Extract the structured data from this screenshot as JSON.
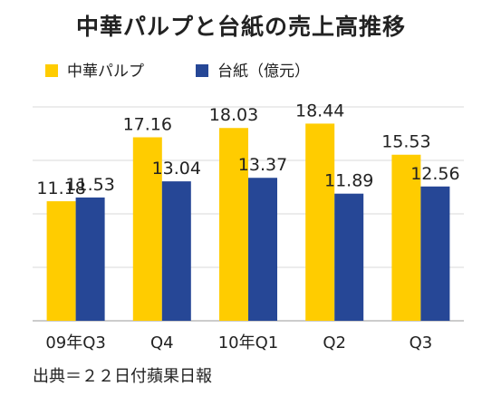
{
  "title": "中華パルプと台紙の売上高推移",
  "source": "出典＝２２日付蘋果日報",
  "colors": {
    "pulp": "#FFCC00",
    "paper": "#264796",
    "grid": "#d9d9d9",
    "axis": "#999999"
  },
  "chart_data": {
    "type": "bar",
    "title": "中華パルプと台紙の売上高推移",
    "unit": "億元",
    "categories": [
      "09年Q3",
      "Q4",
      "10年Q1",
      "Q2",
      "Q3"
    ],
    "series": [
      {
        "name": "中華パルプ",
        "values": [
          11.18,
          17.16,
          18.03,
          18.44,
          15.53
        ],
        "value_labels": [
          "11.18",
          "17.16",
          "18.03",
          "18.44",
          "15.53"
        ]
      },
      {
        "name": "台紙（億元）",
        "values": [
          11.53,
          13.04,
          13.37,
          11.89,
          12.56
        ],
        "value_labels": [
          "11.53",
          "13.04",
          "13.37",
          "11.89",
          "12.56"
        ]
      }
    ],
    "ylim": [
      0,
      20
    ],
    "grid": true,
    "legend": "top-left",
    "data_labels": true
  }
}
